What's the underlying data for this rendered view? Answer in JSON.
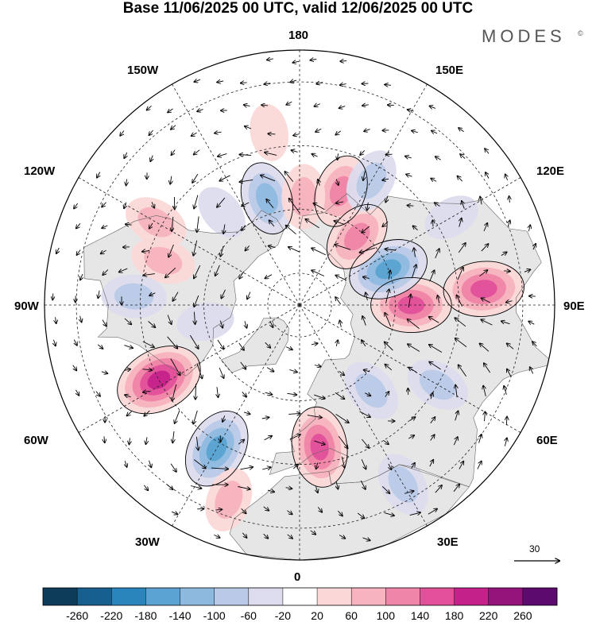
{
  "title": "Base 11/06/2025 00 UTC, valid 12/06/2025 00 UTC",
  "brand": "MODES",
  "brand_mark": "©",
  "longitude_labels": {
    "top": "180",
    "bottom": "0",
    "left": "90W",
    "right": "90E",
    "upper_left_1": "150W",
    "upper_left_2": "120W",
    "upper_right_1": "150E",
    "upper_right_2": "120E",
    "lower_left_1": "60W",
    "lower_left_2": "30W",
    "lower_right_1": "60E",
    "lower_right_2": "30E"
  },
  "reference_vector": {
    "value": "30"
  },
  "colorbar": {
    "colors": [
      "#0d3b5a",
      "#175f8e",
      "#2b85bd",
      "#5aa3d2",
      "#8eb9df",
      "#b9c9e6",
      "#dcdcee",
      "#ffffff",
      "#fbd8d8",
      "#f7b3bf",
      "#ef85a8",
      "#e2509a",
      "#c4228a",
      "#93137b",
      "#5c0a6e"
    ],
    "tick_labels": [
      "-260",
      "-220",
      "-180",
      "-140",
      "-100",
      "-60",
      "-20",
      "20",
      "60",
      "100",
      "140",
      "180",
      "220",
      "260"
    ]
  },
  "anomaly_centers": [
    {
      "lon": 160,
      "lat": 52,
      "value": 100
    },
    {
      "lon": -163,
      "lat": 55,
      "value": -100
    },
    {
      "lon": 178,
      "lat": 56,
      "value": 60
    },
    {
      "lon": -140,
      "lat": 52,
      "value": -20
    },
    {
      "lon": -120,
      "lat": 38,
      "value": 60
    },
    {
      "lon": -108,
      "lat": 45,
      "value": 60
    },
    {
      "lon": -93,
      "lat": 38,
      "value": -60
    },
    {
      "lon": -80,
      "lat": 60,
      "value": -20
    },
    {
      "lon": -62,
      "lat": 40,
      "value": 180
    },
    {
      "lon": -30,
      "lat": 38,
      "value": -140
    },
    {
      "lon": 8,
      "lat": 45,
      "value": 140
    },
    {
      "lon": 40,
      "lat": 55,
      "value": -60
    },
    {
      "lon": 60,
      "lat": 40,
      "value": -60
    },
    {
      "lon": 90,
      "lat": 55,
      "value": 140
    },
    {
      "lon": 95,
      "lat": 32,
      "value": 140
    },
    {
      "lon": 112,
      "lat": 60,
      "value": -140
    },
    {
      "lon": 120,
      "lat": 35,
      "value": -20
    },
    {
      "lon": 140,
      "lat": 62,
      "value": 100
    },
    {
      "lon": 150,
      "lat": 45,
      "value": -60
    },
    {
      "lon": -20,
      "lat": 25,
      "value": 60
    },
    {
      "lon": 30,
      "lat": 25,
      "value": -60
    },
    {
      "lon": -170,
      "lat": 35,
      "value": 20
    }
  ]
}
